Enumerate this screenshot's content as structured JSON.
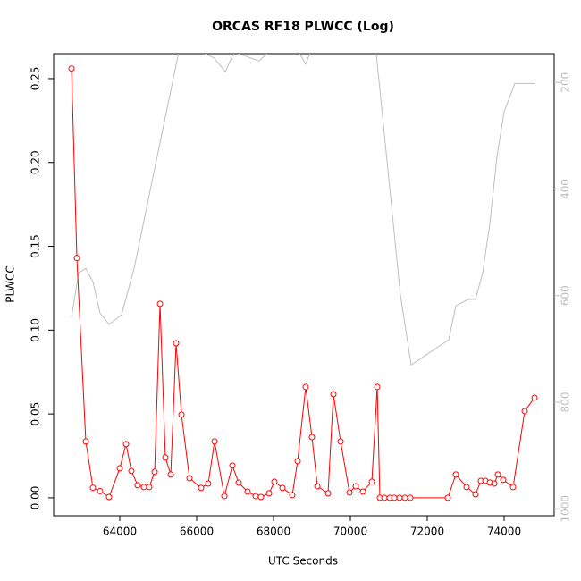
{
  "chart_data": {
    "type": "line",
    "title": "ORCAS RF18 PLWCC (Log)",
    "x_label": "UTC Seconds",
    "y_label": "PLWCC",
    "xlim": [
      62279,
      75302
    ],
    "ylim": [
      -0.0107,
      0.2649
    ],
    "y2lim": [
      1013,
      146
    ],
    "xticks": [
      64000,
      66000,
      68000,
      70000,
      72000,
      74000
    ],
    "yticks": [
      {
        "value": 0,
        "label": "0.00"
      },
      {
        "value": 0.05,
        "label": "0.05"
      },
      {
        "value": 0.1,
        "label": "0.10"
      },
      {
        "value": 0.15,
        "label": "0.15"
      },
      {
        "value": 0.2,
        "label": "0.20"
      },
      {
        "value": 0.25,
        "label": "0.25"
      }
    ],
    "y2ticks": [
      200,
      400,
      600,
      800,
      1000
    ],
    "series": [
      {
        "color": "#ff0000",
        "markers": true,
        "x": [
          62744,
          62884,
          63116,
          63302,
          63488,
          63721,
          64000,
          64163,
          64302,
          64465,
          64628,
          64767,
          64907,
          65047,
          65186,
          65326,
          65465,
          65605,
          65814,
          66116,
          66302,
          66465,
          66721,
          66930,
          67093,
          67326,
          67535,
          67674,
          67884,
          68023,
          68233,
          68488,
          68628,
          68837,
          69000,
          69140,
          69419,
          69558,
          69744,
          69977,
          70140,
          70326,
          70558,
          70698,
          70767,
          70884,
          71023,
          71140,
          71279,
          71419,
          71558,
          72535,
          72744,
          73023,
          73256,
          73395,
          73512,
          73628,
          73744,
          73837,
          73977,
          74233,
          74535,
          74791
        ],
        "values": [
          0.256,
          0.143,
          0.0336,
          0.006,
          0.004,
          0.0005,
          0.0176,
          0.032,
          0.016,
          0.0075,
          0.0064,
          0.0064,
          0.0155,
          0.1157,
          0.024,
          0.0139,
          0.0922,
          0.0496,
          0.0117,
          0.0059,
          0.0085,
          0.0336,
          0.001,
          0.0192,
          0.009,
          0.0037,
          0.001,
          0.0005,
          0.0027,
          0.0096,
          0.0059,
          0.0016,
          0.0219,
          0.0661,
          0.0362,
          0.0069,
          0.0027,
          0.0618,
          0.0336,
          0.0032,
          0.0069,
          0.0037,
          0.0096,
          0.0661,
          0,
          0,
          0,
          0,
          0,
          0,
          0,
          0,
          0.0139,
          0.0064,
          0.0021,
          0.0101,
          0.0101,
          0.0091,
          0.0085,
          0.0139,
          0.0107,
          0.0064,
          0.0517,
          0.0597
        ]
      },
      {
        "color": "#bebebe",
        "axis": "y2",
        "markers": false,
        "x": [
          62744,
          62930,
          63116,
          63302,
          63488,
          63721,
          64047,
          64372,
          65600,
          66465,
          66744,
          66977,
          67628,
          67861,
          68558,
          68837,
          69023,
          70651,
          71000,
          71302,
          71582,
          72558,
          72744,
          73070,
          73256,
          73442,
          73628,
          73814,
          74000,
          74279,
          74791
        ],
        "values": [
          641,
          557,
          549,
          574,
          633,
          654,
          636,
          549,
          120,
          155,
          180,
          143,
          160,
          143,
          130,
          166,
          130,
          130,
          381,
          599,
          730,
          683,
          619,
          607,
          607,
          557,
          465,
          339,
          255,
          202,
          202
        ]
      }
    ]
  }
}
